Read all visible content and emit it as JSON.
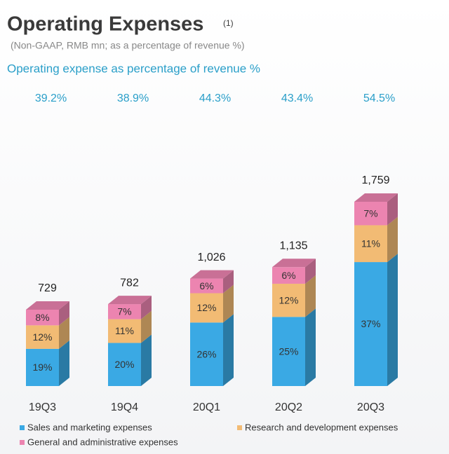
{
  "title": "Operating Expenses",
  "title_note": "(1)",
  "subtitle": "(Non-GAAP, RMB mn; as a percentage of revenue %)",
  "chart_data": {
    "type": "bar",
    "stacked": true,
    "title": "Operating expense as percentage of revenue %",
    "categories": [
      "19Q3",
      "19Q4",
      "20Q1",
      "20Q2",
      "20Q3"
    ],
    "ratio": {
      "values": [
        39.2,
        38.9,
        44.3,
        43.4,
        54.5
      ],
      "value_labels": [
        "39.2%",
        "38.9%",
        "44.3%",
        "43.4%",
        "54.5%"
      ],
      "color": "#2a9fc9"
    },
    "totals": {
      "values": [
        729,
        782,
        1026,
        1135,
        1759
      ],
      "value_labels": [
        "729",
        "782",
        "1,026",
        "1,135",
        "1,759"
      ]
    },
    "series": [
      {
        "name": "Sales and marketing expenses",
        "color": "#3aa9e4",
        "values": [
          19,
          20,
          26,
          25,
          37
        ],
        "value_labels": [
          "19%",
          "20%",
          "26%",
          "25%",
          "37%"
        ]
      },
      {
        "name": "Research and development expenses",
        "color": "#f2bb74",
        "values": [
          12,
          11,
          12,
          12,
          11
        ],
        "value_labels": [
          "12%",
          "11%",
          "12%",
          "12%",
          "11%"
        ]
      },
      {
        "name": "General and administrative expenses",
        "color": "#ec84b0",
        "values": [
          8,
          7,
          6,
          6,
          7
        ],
        "value_labels": [
          "8%",
          "7%",
          "6%",
          "6%",
          "7%"
        ]
      }
    ],
    "legend": "bottom"
  }
}
